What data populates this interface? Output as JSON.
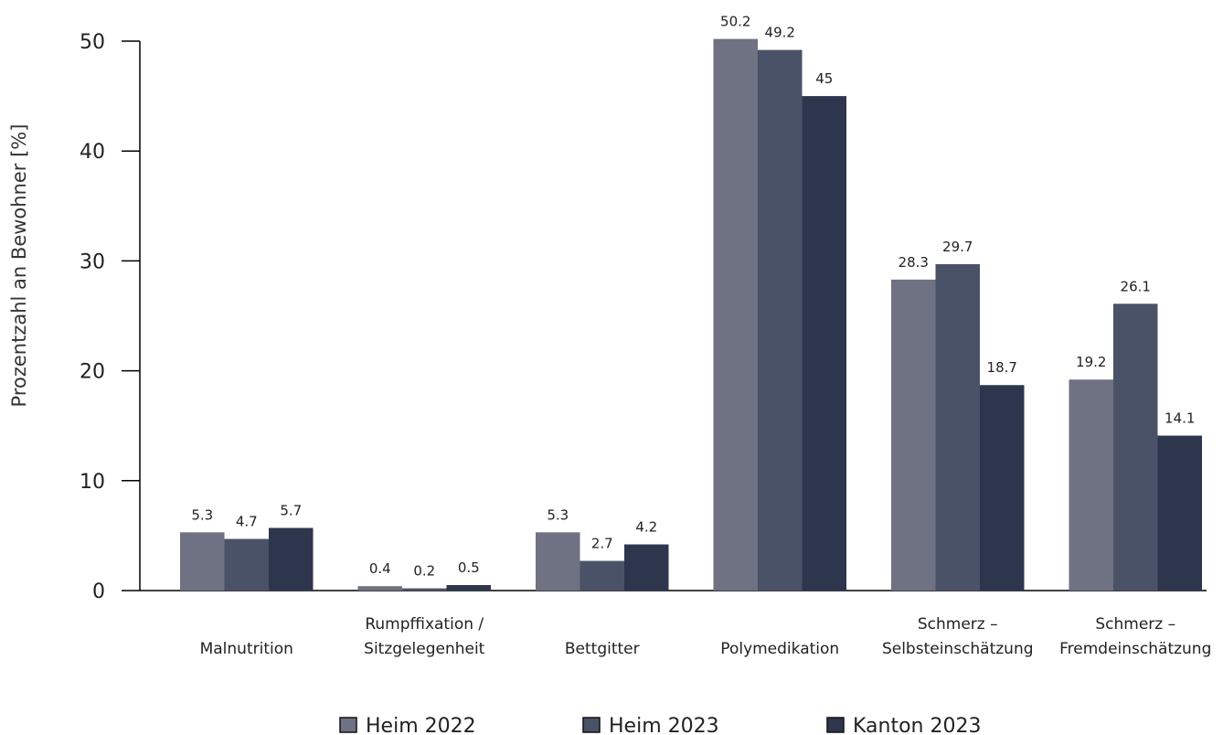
{
  "chart_data": {
    "type": "bar",
    "title": "",
    "xlabel": "",
    "ylabel": "Prozentzahl an Bewohner [%]",
    "ylim": [
      0,
      50
    ],
    "yticks": [
      0,
      10,
      20,
      30,
      40,
      50
    ],
    "grid": false,
    "legend_position": "bottom",
    "categories": [
      [
        "Malnutrition"
      ],
      [
        "Rumpffixation /",
        "Sitzgelegenheit"
      ],
      [
        "Bettgitter"
      ],
      [
        "Polymedikation"
      ],
      [
        "Schmerz –",
        "Selbsteinschätzung"
      ],
      [
        "Schmerz –",
        "Fremdeinschätzung"
      ]
    ],
    "series": [
      {
        "name": "Heim 2022",
        "color": "#6e7282",
        "values": [
          5.3,
          0.4,
          5.3,
          50.2,
          28.3,
          19.2
        ],
        "labels": [
          "5.3",
          "0.4",
          "5.3",
          "50.2",
          "28.3",
          "19.2"
        ]
      },
      {
        "name": "Heim 2023",
        "color": "#4a5267",
        "values": [
          4.7,
          0.2,
          2.7,
          49.2,
          29.7,
          26.1
        ],
        "labels": [
          "4.7",
          "0.2",
          "2.7",
          "49.2",
          "29.7",
          "26.1"
        ]
      },
      {
        "name": "Kanton 2023",
        "color": "#2d364d",
        "values": [
          5.7,
          0.5,
          4.2,
          45,
          18.7,
          14.1
        ],
        "labels": [
          "5.7",
          "0.5",
          "4.2",
          "45",
          "18.7",
          "14.1"
        ]
      }
    ]
  }
}
